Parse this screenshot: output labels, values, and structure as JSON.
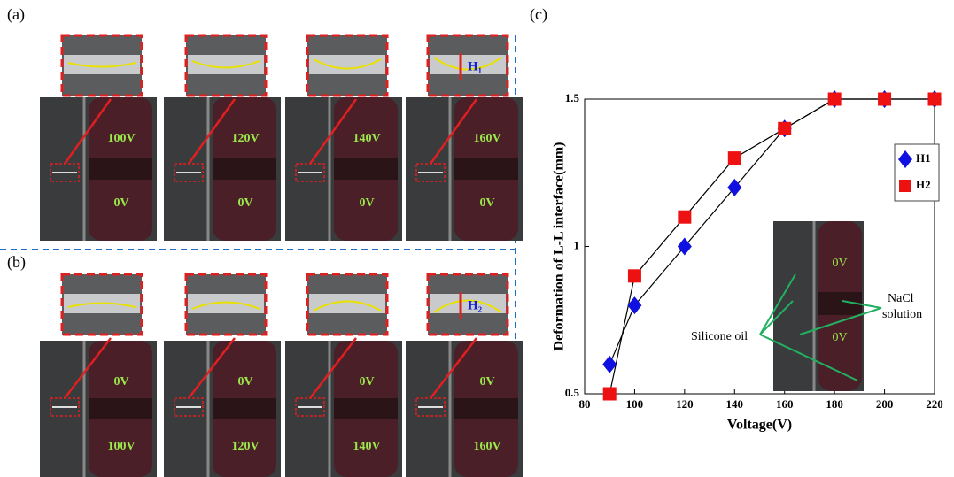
{
  "panels": {
    "a": {
      "label": "(a)",
      "zoom_label": "H₁",
      "top": [
        "100V",
        "120V",
        "140V",
        "160V"
      ],
      "bottom": [
        "0V",
        "0V",
        "0V",
        "0V"
      ]
    },
    "b": {
      "label": "(b)",
      "zoom_label": "H₂",
      "top": [
        "0V",
        "0V",
        "0V",
        "0V"
      ],
      "bottom": [
        "100V",
        "120V",
        "140V",
        "160V"
      ]
    }
  },
  "chart_data": {
    "type": "line",
    "panel_label": "(c)",
    "x_label": "Voltage(V)",
    "y_label": "Deformation of L-L interface(mm)",
    "x": [
      90,
      100,
      120,
      140,
      160,
      180,
      200,
      220
    ],
    "series": [
      {
        "name": "H1",
        "color": "#1010e0",
        "marker": "diamond",
        "values": [
          0.6,
          0.8,
          1.0,
          1.2,
          1.4,
          1.5,
          1.5,
          1.5
        ]
      },
      {
        "name": "H2",
        "color": "#ee1111",
        "marker": "square",
        "values": [
          0.5,
          0.9,
          1.1,
          1.3,
          1.4,
          1.5,
          1.5,
          1.5
        ]
      }
    ],
    "xlim": [
      80,
      220
    ],
    "xticks": [
      80,
      100,
      120,
      140,
      160,
      180,
      200,
      220
    ],
    "ylim": [
      0.5,
      1.5
    ],
    "yticks": [
      0.5,
      1,
      1.5
    ],
    "annotations": [
      "0V",
      "0V",
      "NaCl",
      "solution",
      "Silicone oil"
    ]
  }
}
